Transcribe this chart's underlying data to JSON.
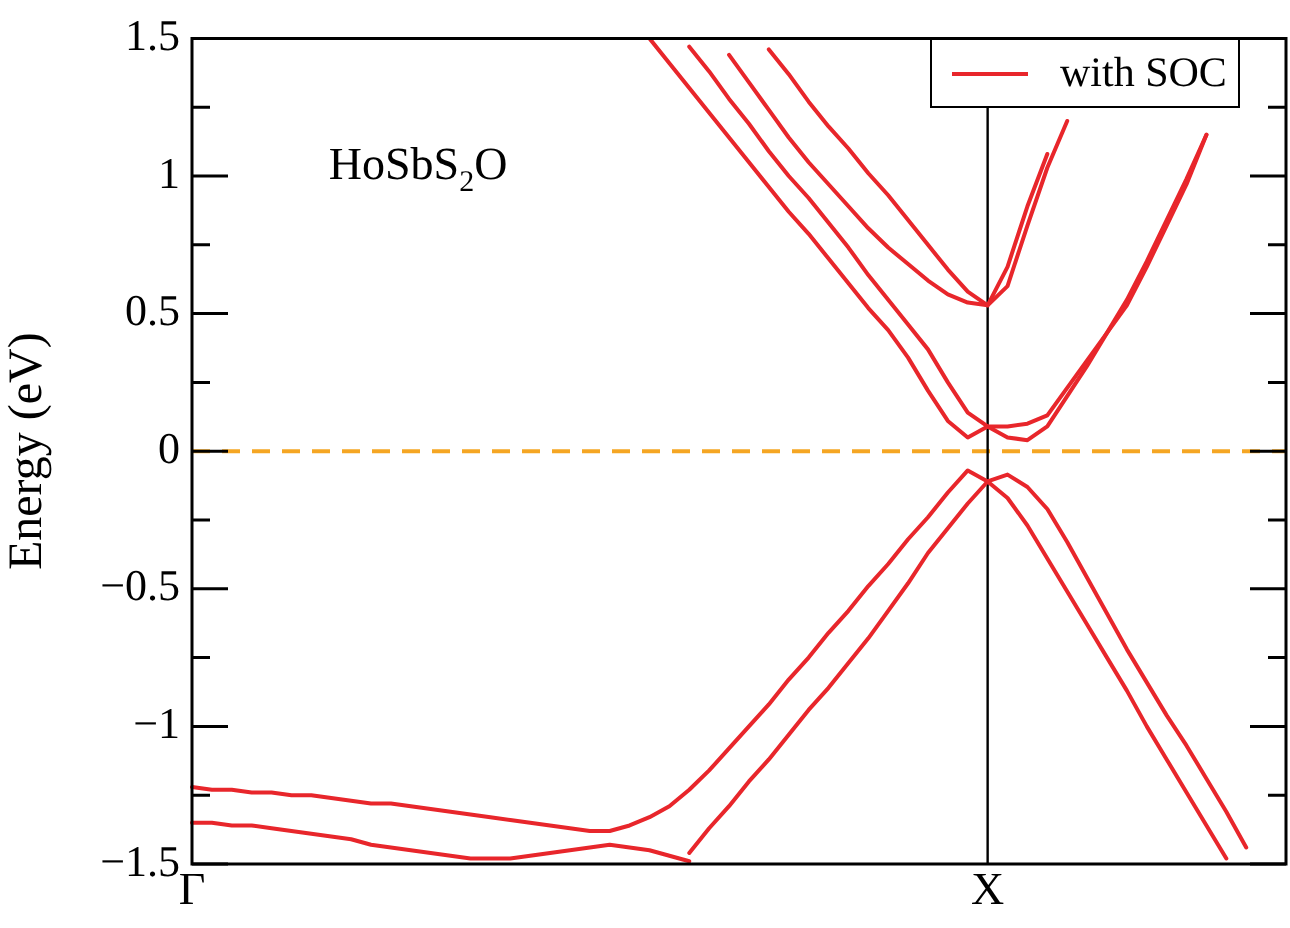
{
  "chart_data": {
    "type": "line",
    "ylabel": "Energy (eV)",
    "annotations": [
      "HoSbS$_{2}$O"
    ],
    "categories": [
      "Γ",
      null,
      null,
      null,
      null,
      null,
      null,
      null,
      null,
      null,
      null,
      null,
      null,
      null,
      null,
      null,
      null,
      null,
      null,
      null,
      null,
      null,
      null,
      null,
      null,
      null,
      null,
      null,
      null,
      null,
      null,
      null,
      null,
      null,
      null,
      null,
      null,
      null,
      null,
      null,
      "X",
      null,
      null,
      null,
      null,
      null,
      null,
      null,
      null,
      null,
      null,
      null,
      null,
      null,
      null,
      null
    ],
    "ylim": [
      -1.5,
      1.5
    ],
    "yticks": [
      -1.5,
      {
        "value": -1.25,
        "label": null
      },
      -1,
      {
        "value": -0.75,
        "label": null
      },
      -0.5,
      {
        "value": -0.25,
        "label": null
      },
      0,
      {
        "value": 0.25,
        "label": null
      },
      0.5,
      {
        "value": 0.75,
        "label": null
      },
      1,
      {
        "value": 1.25,
        "label": null
      },
      1.5
    ],
    "grid": false,
    "legend": "top right",
    "ref_lines": [
      {
        "axis": "y",
        "value": 0,
        "color": "#f5a623",
        "line_style": "dashed"
      },
      {
        "axis": "x",
        "value": "X",
        "color": "#000000"
      }
    ],
    "series": [
      {
        "name": "with SOC",
        "color": "#e8262b",
        "values": [
          null,
          null,
          null,
          null,
          null,
          null,
          null,
          null,
          null,
          null,
          null,
          null,
          null,
          null,
          null,
          null,
          null,
          null,
          null,
          null,
          null,
          null,
          null,
          1.5,
          1.41,
          1.32,
          1.23,
          1.14,
          1.05,
          0.96,
          0.87,
          0.79,
          0.7,
          0.61,
          0.52,
          0.44,
          0.34,
          0.22,
          0.11,
          0.05,
          0.09,
          0.09,
          0.1,
          0.13,
          0.23,
          0.33,
          0.43,
          0.53,
          0.67,
          0.82,
          0.97,
          1.15,
          null,
          null,
          null,
          null
        ]
      },
      {
        "color": "#e8262b",
        "values": [
          null,
          null,
          null,
          null,
          null,
          null,
          null,
          null,
          null,
          null,
          null,
          null,
          null,
          null,
          null,
          null,
          null,
          null,
          null,
          null,
          null,
          null,
          null,
          null,
          null,
          1.47,
          1.38,
          1.28,
          1.19,
          1.09,
          1.0,
          0.92,
          0.83,
          0.74,
          0.64,
          0.55,
          0.46,
          0.37,
          0.25,
          0.14,
          0.09,
          0.05,
          0.04,
          0.09,
          0.2,
          0.31,
          0.43,
          0.55,
          0.69,
          0.84,
          0.99,
          1.15,
          null,
          null,
          null,
          null
        ]
      },
      {
        "color": "#e8262b",
        "values": [
          null,
          null,
          null,
          null,
          null,
          null,
          null,
          null,
          null,
          null,
          null,
          null,
          null,
          null,
          null,
          null,
          null,
          null,
          null,
          null,
          null,
          null,
          null,
          null,
          null,
          null,
          null,
          1.44,
          1.34,
          1.24,
          1.14,
          1.05,
          0.97,
          0.89,
          0.81,
          0.74,
          0.68,
          0.62,
          0.57,
          0.54,
          0.53,
          0.6,
          0.82,
          1.03,
          1.2,
          null,
          null,
          null,
          null,
          null,
          null,
          null,
          null,
          null,
          null,
          null
        ]
      },
      {
        "color": "#e8262b",
        "values": [
          null,
          null,
          null,
          null,
          null,
          null,
          null,
          null,
          null,
          null,
          null,
          null,
          null,
          null,
          null,
          null,
          null,
          null,
          null,
          null,
          null,
          null,
          null,
          null,
          null,
          null,
          null,
          null,
          null,
          1.46,
          1.37,
          1.27,
          1.18,
          1.1,
          1.01,
          0.93,
          0.84,
          0.75,
          0.66,
          0.58,
          0.53,
          0.67,
          0.89,
          1.08,
          null,
          null,
          null,
          null,
          null,
          null,
          null,
          null,
          null,
          null,
          null,
          null
        ]
      },
      {
        "color": "#e8262b",
        "values": [
          -1.22,
          -1.23,
          -1.23,
          -1.24,
          -1.24,
          -1.25,
          -1.25,
          -1.26,
          -1.27,
          -1.28,
          -1.28,
          -1.29,
          -1.3,
          -1.31,
          -1.32,
          -1.33,
          -1.34,
          -1.35,
          -1.36,
          -1.37,
          -1.38,
          -1.38,
          -1.36,
          -1.33,
          -1.29,
          -1.23,
          -1.16,
          -1.08,
          -1.0,
          -0.92,
          -0.83,
          -0.75,
          -0.66,
          -0.58,
          -0.49,
          -0.41,
          -0.32,
          -0.24,
          -0.15,
          -0.07,
          -0.11,
          -0.17,
          -0.27,
          -0.39,
          -0.51,
          -0.63,
          -0.75,
          -0.87,
          -1.0,
          -1.12,
          -1.24,
          -1.36,
          -1.48,
          null,
          null,
          null
        ]
      },
      {
        "color": "#e8262b",
        "values": [
          -1.35,
          -1.35,
          -1.36,
          -1.36,
          -1.37,
          -1.38,
          -1.39,
          -1.4,
          -1.41,
          -1.43,
          -1.44,
          -1.45,
          -1.46,
          -1.47,
          -1.48,
          -1.48,
          -1.48,
          -1.47,
          -1.46,
          -1.45,
          -1.44,
          -1.43,
          -1.44,
          -1.45,
          -1.47,
          -1.49,
          null,
          null,
          null,
          null,
          null,
          null,
          null,
          null,
          null,
          null,
          null,
          null,
          null,
          null,
          null,
          null,
          null,
          null,
          null,
          null,
          null,
          null,
          null,
          null,
          null,
          null,
          null,
          null,
          null,
          null
        ]
      },
      {
        "color": "#e8262b",
        "values": [
          null,
          null,
          null,
          null,
          null,
          null,
          null,
          null,
          null,
          null,
          null,
          null,
          null,
          null,
          null,
          null,
          null,
          null,
          null,
          null,
          null,
          null,
          null,
          null,
          null,
          -1.46,
          -1.37,
          -1.29,
          -1.2,
          -1.12,
          -1.03,
          -0.94,
          -0.86,
          -0.77,
          -0.68,
          -0.58,
          -0.48,
          -0.37,
          -0.28,
          -0.19,
          -0.11,
          -0.085,
          -0.13,
          -0.21,
          -0.33,
          -0.46,
          -0.59,
          -0.72,
          -0.84,
          -0.96,
          -1.07,
          -1.19,
          -1.31,
          -1.44,
          null,
          null
        ]
      }
    ]
  }
}
